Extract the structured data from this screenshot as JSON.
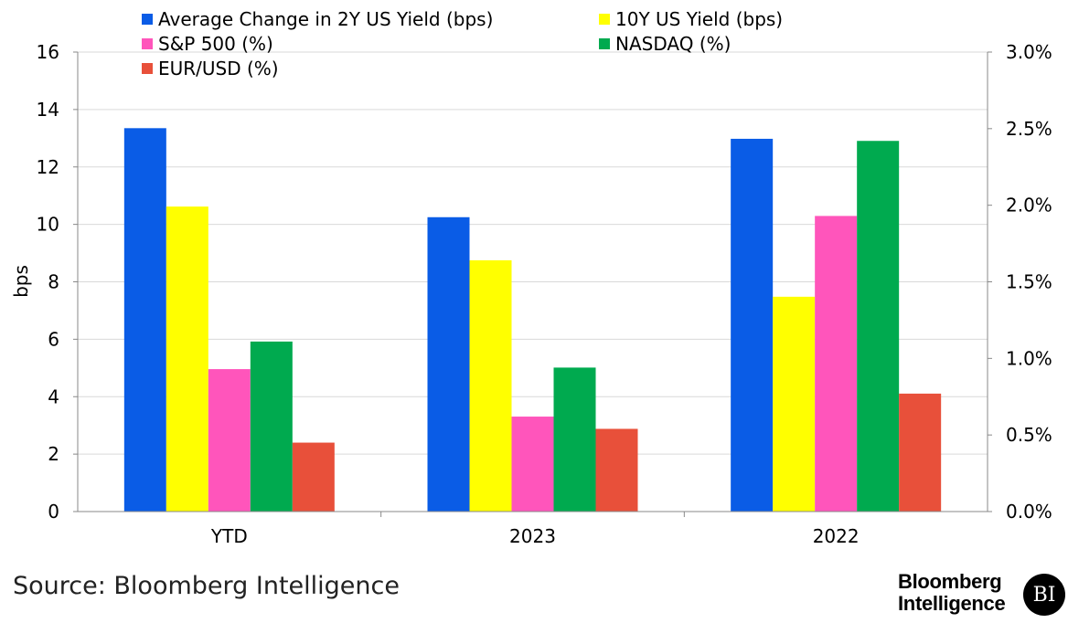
{
  "chart_data": {
    "type": "bar",
    "categories": [
      "YTD",
      "2023",
      "2022"
    ],
    "series": [
      {
        "name": "Average Change in 2Y US Yield (bps)",
        "axis": "left",
        "color": "#0a5ce6",
        "values": [
          13.35,
          10.25,
          12.98
        ]
      },
      {
        "name": "10Y US Yield (bps)",
        "axis": "left",
        "color": "#ffff00",
        "values": [
          10.62,
          8.75,
          7.48
        ]
      },
      {
        "name": "S&P 500 (%)",
        "axis": "right",
        "color": "#ff55bb",
        "values": [
          0.93,
          0.62,
          1.93
        ]
      },
      {
        "name": "NASDAQ (%)",
        "axis": "right",
        "color": "#00aa4f",
        "values": [
          1.11,
          0.94,
          2.42
        ]
      },
      {
        "name": "EUR/USD (%)",
        "axis": "right",
        "color": "#e8503a",
        "values": [
          0.45,
          0.54,
          0.77
        ]
      }
    ],
    "ylabel": "bps",
    "ylim": [
      0,
      16
    ],
    "yticks": [
      "0",
      "2",
      "4",
      "6",
      "8",
      "10",
      "12",
      "14",
      "16"
    ],
    "y2lim": [
      0,
      3.0
    ],
    "y2ticks": [
      "0.0%",
      "0.5%",
      "1.0%",
      "1.5%",
      "2.0%",
      "2.5%",
      "3.0%"
    ],
    "grid": true,
    "legend_position": "top"
  },
  "footer": {
    "source": "Source: Bloomberg Intelligence",
    "brand_line1": "Bloomberg",
    "brand_line2": "Intelligence",
    "brand_badge": "BI"
  }
}
